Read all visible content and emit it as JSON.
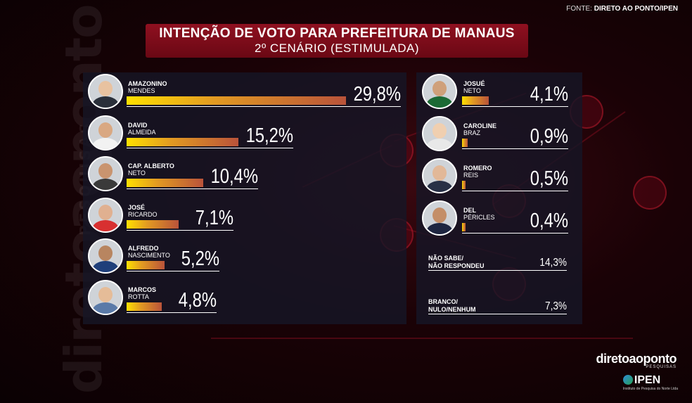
{
  "source": {
    "prefix": "FONTE:",
    "name": "DIRETO AO PONTO/IPEN"
  },
  "title": {
    "line1": "INTENÇÃO DE VOTO PARA PREFEITURA DE MANAUS",
    "line2": "2º CENÁRIO (ESTIMULADA)"
  },
  "watermark": {
    "big": "diretoaoponto",
    "small": "PESQUISAS"
  },
  "colors": {
    "title_bg": "#8f1020",
    "bar_start": "#ffe000",
    "bar_end": "#b9533a",
    "panel": "#16162a"
  },
  "chart_data": {
    "type": "bar",
    "title": "INTENÇÃO DE VOTO PARA PREFEITURA DE MANAUS",
    "subtitle": "2º CENÁRIO (ESTIMULADA)",
    "unit": "%",
    "candidates": [
      {
        "first": "AMAZONINO",
        "last": "MENDES",
        "value": 29.8,
        "label": "29,8%"
      },
      {
        "first": "DAVID",
        "last": "ALMEIDA",
        "value": 15.2,
        "label": "15,2%"
      },
      {
        "first": "CAP. ALBERTO",
        "last": "NETO",
        "value": 10.4,
        "label": "10,4%"
      },
      {
        "first": "JOSÉ",
        "last": "RICARDO",
        "value": 7.1,
        "label": "7,1%"
      },
      {
        "first": "ALFREDO",
        "last": "NASCIMENTO",
        "value": 5.2,
        "label": "5,2%"
      },
      {
        "first": "MARCOS",
        "last": "ROTTA",
        "value": 4.8,
        "label": "4,8%"
      },
      {
        "first": "JOSUÉ",
        "last": "NETO",
        "value": 4.1,
        "label": "4,1%"
      },
      {
        "first": "CAROLINE",
        "last": "BRAZ",
        "value": 0.9,
        "label": "0,9%"
      },
      {
        "first": "ROMERO",
        "last": "REIS",
        "value": 0.5,
        "label": "0,5%"
      },
      {
        "first": "DEL",
        "last": "PÉRICLES",
        "value": 0.4,
        "label": "0,4%"
      }
    ],
    "others": [
      {
        "line1": "NÃO SABE/",
        "line2": "NÃO RESPONDEU",
        "value": 14.3,
        "label": "14,3%"
      },
      {
        "line1": "BRANCO/",
        "line2": "NULO/NENHUM",
        "value": 7.3,
        "label": "7,3%"
      }
    ]
  },
  "brand": {
    "name": "diretoaoponto",
    "sub": "PESQUISAS",
    "ipen": "IPEN",
    "ipen_sub": "Instituto de Pesquisa do Norte Ltda"
  }
}
